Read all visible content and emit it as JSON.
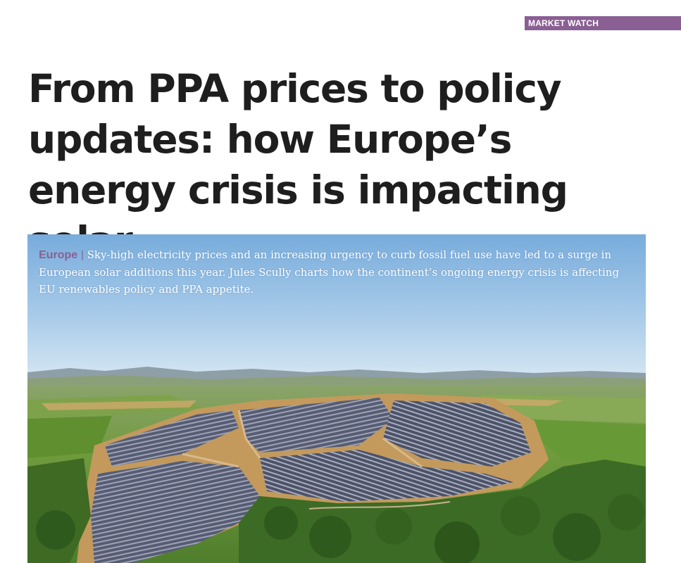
{
  "section_tag": "MARKET WATCH",
  "headline": "From PPA prices to policy updates: how Europe’s energy crisis is impacting solar",
  "standfirst": {
    "region": "Europe",
    "separator": "|",
    "text": "Sky-high electricity prices and an increasing urgency to curb fossil fuel use have led to a surge in European solar additions this year. Jules Scully charts how the continent’s ongoing energy crisis is affecting EU renewables policy and PPA appetite."
  },
  "hero_image": {
    "subject": "aerial-solar-farm"
  },
  "colors": {
    "accent": "#8a5f93",
    "headline": "#1e1e1e",
    "sky_top": "#7fb1de",
    "sky_bottom": "#cfe3f2",
    "field_green": "#5e8f34",
    "soil": "#c9a062",
    "panel": "#4a4f66"
  }
}
